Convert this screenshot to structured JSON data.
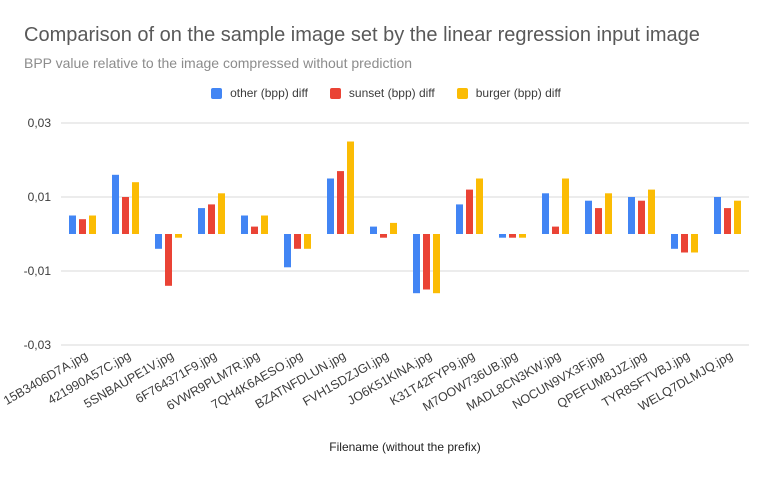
{
  "colors": {
    "other": "#4285f4",
    "sunset": "#ea4335",
    "burger": "#fbbc04",
    "grid": "#d9d9d9",
    "text": "#3c3c3c"
  },
  "chart_data": {
    "type": "bar",
    "title": "Comparison of on the sample image set by the linear regression input image",
    "subtitle": "BPP value relative to the image compressed without prediction",
    "xlabel": "Filename (without the prefix)",
    "ylabel": "",
    "ylim": [
      -0.03,
      0.03
    ],
    "yticks": [
      "0,03",
      "0,01",
      "-0,01",
      "-0,03"
    ],
    "ytick_values": [
      0.03,
      0.01,
      -0.01,
      -0.03
    ],
    "grid": true,
    "legend_position": "top",
    "categories": [
      "15B3406D7A.jpg",
      "421990A57C.jpg",
      "5SNBAUPE1V.jpg",
      "6F764371F9.jpg",
      "6VWR9PLM7R.jpg",
      "7QH4K6AESO.jpg",
      "BZATNFDLUN.jpg",
      "FVH1SDZJGI.jpg",
      "JO6K51KINA.jpg",
      "K31T42FYP9.jpg",
      "M7OOW736UB.jpg",
      "MADL8CN3KW.jpg",
      "NOCUN9VX3F.jpg",
      "QPEFUM8JJZ.jpg",
      "TYR8SFTVBJ.jpg",
      "WELQ7DLMJQ.jpg"
    ],
    "series": [
      {
        "name": "other (bpp) diff",
        "values": [
          0.005,
          0.016,
          -0.004,
          0.007,
          0.005,
          -0.009,
          0.015,
          0.002,
          -0.016,
          0.008,
          -0.001,
          0.011,
          0.009,
          0.01,
          -0.004,
          0.01
        ]
      },
      {
        "name": "sunset (bpp) diff",
        "values": [
          0.004,
          0.01,
          -0.014,
          0.008,
          0.002,
          -0.004,
          0.017,
          -0.001,
          -0.015,
          0.012,
          -0.001,
          0.002,
          0.007,
          0.009,
          -0.005,
          0.007
        ]
      },
      {
        "name": "burger (bpp) diff",
        "values": [
          0.005,
          0.014,
          -0.001,
          0.011,
          0.005,
          -0.004,
          0.025,
          0.003,
          -0.016,
          0.015,
          -0.001,
          0.015,
          0.011,
          0.012,
          -0.005,
          0.009
        ]
      }
    ]
  }
}
